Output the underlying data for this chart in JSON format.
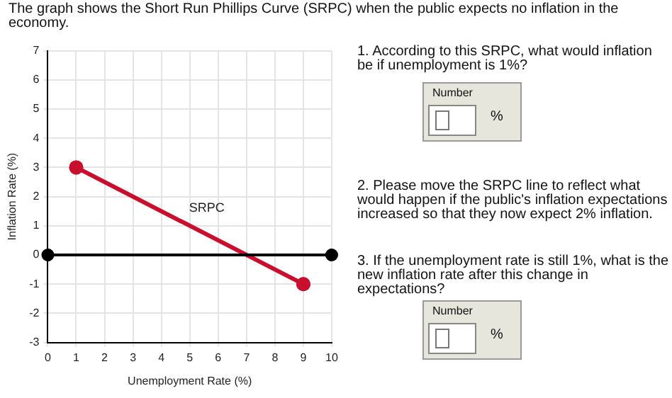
{
  "chart_data": {
    "type": "line",
    "title": "The graph shows the Short Run Phillips Curve (SRPC) when the public expects no inflation in the economy.",
    "xlabel": "Unemployment Rate (%)",
    "ylabel": "Inflation Rate (%)",
    "series": [
      {
        "color": "#000000",
        "x": [
          0,
          10
        ],
        "values": [
          0,
          0
        ]
      },
      {
        "name": "SRPC",
        "color": "#c8102e",
        "x": [
          1,
          9
        ],
        "values": [
          3,
          -1
        ]
      }
    ],
    "marker": "circle",
    "xlim": [
      0,
      10
    ],
    "xticks": [
      0,
      1,
      2,
      3,
      4,
      5,
      6,
      7,
      8,
      9,
      10
    ],
    "ylim": [
      -3,
      7
    ],
    "yticks": [
      -3,
      -2,
      -1,
      0,
      1,
      2,
      3,
      4,
      5,
      6,
      7
    ],
    "grid": true,
    "annotations": [
      "1. According to this SRPC, what would inflation be if unemployment is 1%?",
      "Number",
      "%",
      "2. Please move the SRPC line to reflect what would happen if the public's inflation expectations increased so that they now expect 2% inflation.",
      "3. If the unemployment rate is still 1%, what is the new inflation rate after this change in expectations?",
      "Number",
      "%"
    ]
  }
}
